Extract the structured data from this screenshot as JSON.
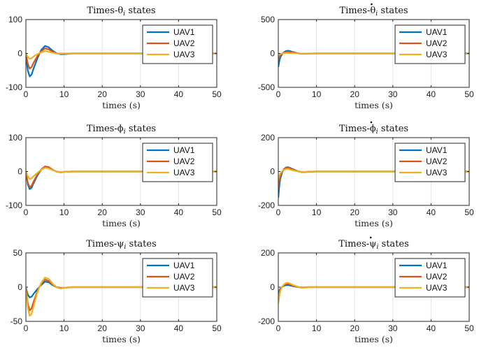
{
  "chart_data": [
    {
      "type": "line",
      "title": "Times-θ",
      "title_sub": "i",
      "title_suffix": " states",
      "dot": false,
      "xlabel": "times (s)",
      "ylabel": "",
      "xlim": [
        0,
        50
      ],
      "ylim": [
        -100,
        100
      ],
      "xticks": [
        0,
        10,
        20,
        30,
        40,
        50
      ],
      "yticks": [
        -100,
        0,
        100
      ],
      "grid": "x",
      "legend": "top-right",
      "series": [
        {
          "name": "UAV1",
          "color": "#0072BD",
          "x": [
            0,
            0.5,
            1,
            1.5,
            2,
            3,
            4,
            5,
            6,
            7,
            8,
            9,
            10,
            12,
            15,
            50
          ],
          "y": [
            0,
            -50,
            -68,
            -62,
            -45,
            -15,
            10,
            22,
            18,
            8,
            1,
            -2,
            -2,
            0,
            0,
            0
          ]
        },
        {
          "name": "UAV2",
          "color": "#D95319",
          "x": [
            0,
            0.5,
            1,
            1.5,
            2,
            3,
            4,
            5,
            6,
            7,
            8,
            9,
            10,
            12,
            15,
            50
          ],
          "y": [
            0,
            -30,
            -45,
            -40,
            -28,
            -8,
            6,
            15,
            12,
            5,
            0,
            -1,
            -1,
            0,
            0,
            0
          ]
        },
        {
          "name": "UAV3",
          "color": "#EDB120",
          "x": [
            0,
            0.5,
            1,
            1.5,
            2,
            3,
            4,
            5,
            6,
            7,
            8,
            9,
            10,
            12,
            15,
            50
          ],
          "y": [
            0,
            -10,
            -16,
            -14,
            -9,
            -2,
            3,
            7,
            5,
            2,
            0,
            0,
            0,
            0,
            0,
            0
          ]
        }
      ]
    },
    {
      "type": "line",
      "title": "Times-θ",
      "title_sub": "i",
      "title_suffix": " states",
      "dot": true,
      "xlabel": "times (s)",
      "ylabel": "",
      "xlim": [
        0,
        50
      ],
      "ylim": [
        -500,
        500
      ],
      "xticks": [
        0,
        10,
        20,
        30,
        40,
        50
      ],
      "yticks": [
        -500,
        0,
        500
      ],
      "grid": "x",
      "legend": "top-right",
      "series": [
        {
          "name": "UAV1",
          "color": "#0072BD",
          "x": [
            0,
            0.2,
            0.5,
            1,
            1.5,
            2,
            2.5,
            3,
            4,
            5,
            6,
            7,
            8,
            10,
            15,
            50
          ],
          "y": [
            -200,
            -130,
            -60,
            -10,
            20,
            35,
            40,
            35,
            18,
            4,
            -4,
            -5,
            -2,
            0,
            0,
            0
          ]
        },
        {
          "name": "UAV2",
          "color": "#D95319",
          "x": [
            0,
            0.2,
            0.5,
            1,
            1.5,
            2,
            2.5,
            3,
            4,
            5,
            6,
            7,
            8,
            10,
            15,
            50
          ],
          "y": [
            -90,
            -60,
            -30,
            -5,
            12,
            22,
            26,
            22,
            12,
            3,
            -3,
            -3,
            -1,
            0,
            0,
            0
          ]
        },
        {
          "name": "UAV3",
          "color": "#EDB120",
          "x": [
            0,
            0.2,
            0.5,
            1,
            1.5,
            2,
            2.5,
            3,
            4,
            5,
            6,
            7,
            8,
            10,
            15,
            50
          ],
          "y": [
            -30,
            -20,
            -10,
            -2,
            4,
            7,
            8,
            7,
            4,
            1,
            -1,
            -1,
            0,
            0,
            0,
            0
          ]
        }
      ]
    },
    {
      "type": "line",
      "title": "Times-ϕ",
      "title_sub": "i",
      "title_suffix": " states",
      "dot": false,
      "xlabel": "times (s)",
      "ylabel": "",
      "xlim": [
        0,
        50
      ],
      "ylim": [
        -100,
        100
      ],
      "xticks": [
        0,
        10,
        20,
        30,
        40,
        50
      ],
      "yticks": [
        -100,
        0,
        100
      ],
      "grid": "x",
      "legend": "top-right",
      "series": [
        {
          "name": "UAV1",
          "color": "#0072BD",
          "x": [
            0,
            0.5,
            1,
            1.5,
            2,
            3,
            4,
            5,
            6,
            7,
            8,
            9,
            10,
            12,
            15,
            50
          ],
          "y": [
            0,
            -38,
            -52,
            -48,
            -35,
            -12,
            5,
            14,
            12,
            5,
            0,
            -2,
            -1,
            0,
            0,
            0
          ]
        },
        {
          "name": "UAV2",
          "color": "#D95319",
          "x": [
            0,
            0.5,
            1,
            1.5,
            2,
            3,
            4,
            5,
            6,
            7,
            8,
            9,
            10,
            12,
            15,
            50
          ],
          "y": [
            0,
            -33,
            -46,
            -42,
            -30,
            -9,
            6,
            15,
            13,
            5,
            0,
            -2,
            -1,
            0,
            0,
            0
          ]
        },
        {
          "name": "UAV3",
          "color": "#EDB120",
          "x": [
            0,
            0.5,
            1,
            1.5,
            2,
            3,
            4,
            5,
            6,
            7,
            8,
            9,
            10,
            12,
            15,
            50
          ],
          "y": [
            0,
            -14,
            -22,
            -20,
            -14,
            -4,
            5,
            11,
            9,
            4,
            0,
            -1,
            -1,
            0,
            0,
            0
          ]
        }
      ]
    },
    {
      "type": "line",
      "title": "Times-ϕ",
      "title_sub": "i",
      "title_suffix": " states",
      "dot": true,
      "xlabel": "times (s)",
      "ylabel": "",
      "xlim": [
        0,
        50
      ],
      "ylim": [
        -200,
        200
      ],
      "xticks": [
        0,
        10,
        20,
        30,
        40,
        50
      ],
      "yticks": [
        -200,
        0,
        200
      ],
      "grid": "x",
      "legend": "top-right",
      "series": [
        {
          "name": "UAV1",
          "color": "#0072BD",
          "x": [
            0,
            0.2,
            0.5,
            1,
            1.5,
            2,
            2.5,
            3,
            4,
            5,
            6,
            7,
            8,
            10,
            15,
            50
          ],
          "y": [
            -155,
            -100,
            -45,
            -5,
            15,
            24,
            26,
            22,
            12,
            3,
            -3,
            -3,
            -1,
            0,
            0,
            0
          ]
        },
        {
          "name": "UAV2",
          "color": "#D95319",
          "x": [
            0,
            0.2,
            0.5,
            1,
            1.5,
            2,
            2.5,
            3,
            4,
            5,
            6,
            7,
            8,
            10,
            15,
            50
          ],
          "y": [
            -100,
            -65,
            -28,
            -2,
            14,
            22,
            24,
            20,
            10,
            2,
            -3,
            -3,
            -1,
            0,
            0,
            0
          ]
        },
        {
          "name": "UAV3",
          "color": "#EDB120",
          "x": [
            0,
            0.2,
            0.5,
            1,
            1.5,
            2,
            2.5,
            3,
            4,
            5,
            6,
            7,
            8,
            10,
            15,
            50
          ],
          "y": [
            -45,
            -30,
            -12,
            2,
            10,
            14,
            15,
            12,
            6,
            1,
            -2,
            -2,
            0,
            0,
            0,
            0
          ]
        }
      ]
    },
    {
      "type": "line",
      "title": "Times-ψ",
      "title_sub": "i",
      "title_suffix": " states",
      "dot": false,
      "xlabel": "times (s)",
      "ylabel": "",
      "xlim": [
        0,
        50
      ],
      "ylim": [
        -50,
        50
      ],
      "xticks": [
        0,
        10,
        20,
        30,
        40,
        50
      ],
      "yticks": [
        -50,
        0,
        50
      ],
      "grid": "x",
      "legend": "top-right",
      "series": [
        {
          "name": "UAV1",
          "color": "#0072BD",
          "x": [
            0,
            0.5,
            1,
            1.5,
            2,
            3,
            4,
            5,
            6,
            7,
            8,
            9,
            10,
            12,
            15,
            50
          ],
          "y": [
            0,
            -11,
            -15,
            -14,
            -10,
            -3,
            3,
            8,
            7,
            3,
            0,
            -1,
            -1,
            0,
            0,
            0
          ]
        },
        {
          "name": "UAV2",
          "color": "#D95319",
          "x": [
            0,
            0.5,
            1,
            1.5,
            2,
            3,
            4,
            5,
            6,
            7,
            8,
            9,
            10,
            12,
            15,
            50
          ],
          "y": [
            0,
            -24,
            -34,
            -31,
            -22,
            -6,
            5,
            11,
            9,
            4,
            0,
            -1,
            -1,
            0,
            0,
            0
          ]
        },
        {
          "name": "UAV3",
          "color": "#EDB120",
          "x": [
            0,
            0.5,
            1,
            1.5,
            2,
            3,
            4,
            5,
            6,
            7,
            8,
            9,
            10,
            12,
            15,
            50
          ],
          "y": [
            0,
            -30,
            -42,
            -39,
            -28,
            -8,
            6,
            14,
            12,
            5,
            0,
            -2,
            -1,
            0,
            0,
            0
          ]
        }
      ]
    },
    {
      "type": "line",
      "title": "Times-ψ",
      "title_sub": "i",
      "title_suffix": " states",
      "dot": true,
      "xlabel": "times (s)",
      "ylabel": "",
      "xlim": [
        0,
        50
      ],
      "ylim": [
        -200,
        200
      ],
      "xticks": [
        0,
        10,
        20,
        30,
        40,
        50
      ],
      "yticks": [
        -200,
        0,
        200
      ],
      "grid": "x",
      "legend": "top-right",
      "series": [
        {
          "name": "UAV1",
          "color": "#0072BD",
          "x": [
            0,
            0.2,
            0.5,
            1,
            1.5,
            2,
            2.5,
            3,
            4,
            5,
            6,
            7,
            8,
            10,
            15,
            50
          ],
          "y": [
            -40,
            -25,
            -10,
            2,
            8,
            11,
            12,
            10,
            5,
            1,
            -2,
            -2,
            0,
            0,
            0,
            0
          ]
        },
        {
          "name": "UAV2",
          "color": "#D95319",
          "x": [
            0,
            0.2,
            0.5,
            1,
            1.5,
            2,
            2.5,
            3,
            4,
            5,
            6,
            7,
            8,
            10,
            15,
            50
          ],
          "y": [
            -70,
            -45,
            -18,
            2,
            12,
            18,
            19,
            16,
            8,
            2,
            -3,
            -2,
            0,
            0,
            0,
            0
          ]
        },
        {
          "name": "UAV3",
          "color": "#EDB120",
          "x": [
            0,
            0.2,
            0.5,
            1,
            1.5,
            2,
            2.5,
            3,
            4,
            5,
            6,
            7,
            8,
            10,
            15,
            50
          ],
          "y": [
            -95,
            -60,
            -25,
            3,
            16,
            24,
            26,
            22,
            11,
            3,
            -4,
            -3,
            -1,
            0,
            0,
            0
          ]
        }
      ]
    }
  ]
}
